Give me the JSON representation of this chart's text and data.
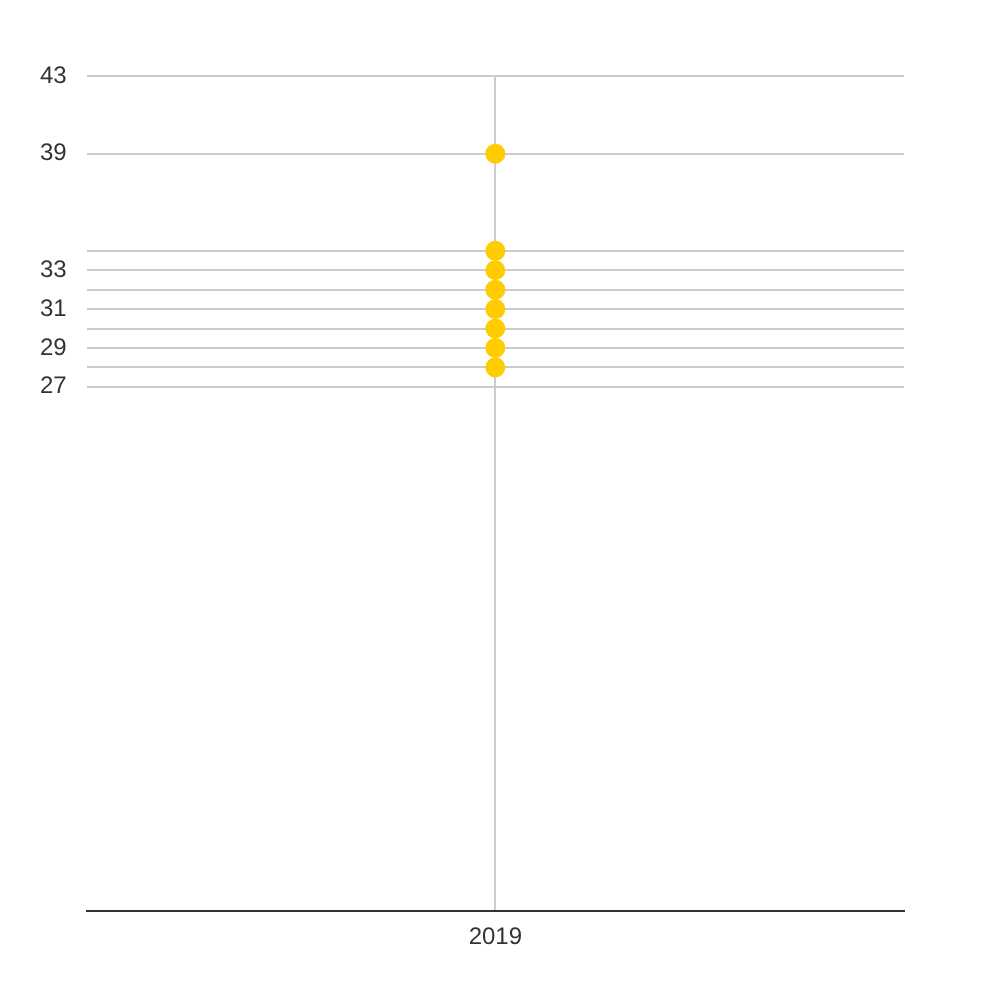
{
  "chart_data": {
    "type": "scatter",
    "marker": "circle",
    "grid": true,
    "legend": false,
    "categories": [
      "2019"
    ],
    "series": [
      {
        "color": "#ffcc00",
        "values": [
          39
        ]
      },
      {
        "color": "#ffcc00",
        "values": [
          34
        ]
      },
      {
        "color": "#ffcc00",
        "values": [
          33
        ]
      },
      {
        "color": "#ffcc00",
        "values": [
          32
        ]
      },
      {
        "color": "#ffcc00",
        "values": [
          31
        ]
      },
      {
        "color": "#ffcc00",
        "values": [
          30
        ]
      },
      {
        "color": "#ffcc00",
        "values": [
          29
        ]
      },
      {
        "color": "#ffcc00",
        "values": [
          28
        ]
      }
    ],
    "ylim": [
      0,
      43
    ],
    "yticks": [
      27,
      {
        "value": 28,
        "label": null
      },
      29,
      {
        "value": 30,
        "label": null
      },
      31,
      {
        "value": 32,
        "label": null
      },
      33,
      {
        "value": 34,
        "label": null
      },
      39,
      43
    ]
  }
}
